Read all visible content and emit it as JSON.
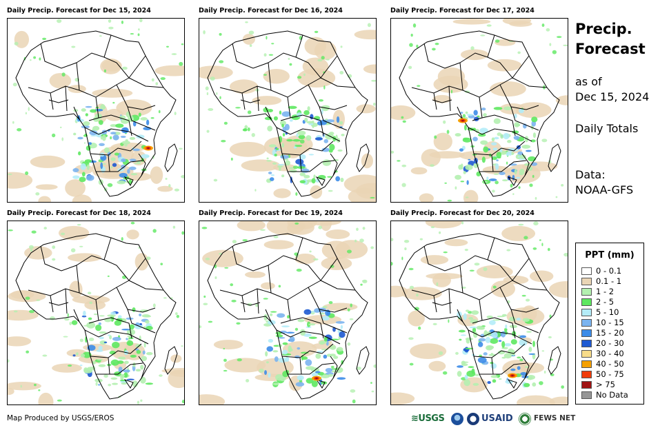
{
  "panels": [
    {
      "title": "Daily Precip. Forecast for Dec 15, 2024"
    },
    {
      "title": "Daily Precip. Forecast for Dec 16, 2024"
    },
    {
      "title": "Daily Precip. Forecast for Dec 17, 2024"
    },
    {
      "title": "Daily Precip. Forecast for Dec 18, 2024"
    },
    {
      "title": "Daily Precip. Forecast for Dec 19, 2024"
    },
    {
      "title": "Daily Precip. Forecast for Dec 20, 2024"
    }
  ],
  "sidebar": {
    "title_line1": "Precip.",
    "title_line2": "Forecast",
    "asof_line1": "as of",
    "asof_line2": "Dec 15, 2024",
    "totals": "Daily Totals",
    "data_line1": "Data:",
    "data_line2": "NOAA-GFS"
  },
  "legend": {
    "title": "PPT (mm)",
    "items": [
      {
        "label": "0 - 0.1",
        "color": "#ffffff"
      },
      {
        "label": "0.1 - 1",
        "color": "#ead5b5"
      },
      {
        "label": "1 - 2",
        "color": "#b4f0b0"
      },
      {
        "label": "2 - 5",
        "color": "#5ee860"
      },
      {
        "label": "5 - 10",
        "color": "#b4ecf8"
      },
      {
        "label": "10 - 15",
        "color": "#7bb4f0"
      },
      {
        "label": "15 - 20",
        "color": "#3c8ce8"
      },
      {
        "label": "20 - 30",
        "color": "#1e5ad2"
      },
      {
        "label": "30 - 40",
        "color": "#f8dc8a"
      },
      {
        "label": "40 - 50",
        "color": "#f5a000"
      },
      {
        "label": "50 - 75",
        "color": "#f03c0a"
      },
      {
        "label": "> 75",
        "color": "#a01414"
      },
      {
        "label": "No Data",
        "color": "#969696"
      }
    ]
  },
  "credit": "Map Produced by USGS/EROS",
  "logos": {
    "usgs": "≋USGS",
    "usaid": "USAID",
    "fews": "FEWS NET"
  }
}
